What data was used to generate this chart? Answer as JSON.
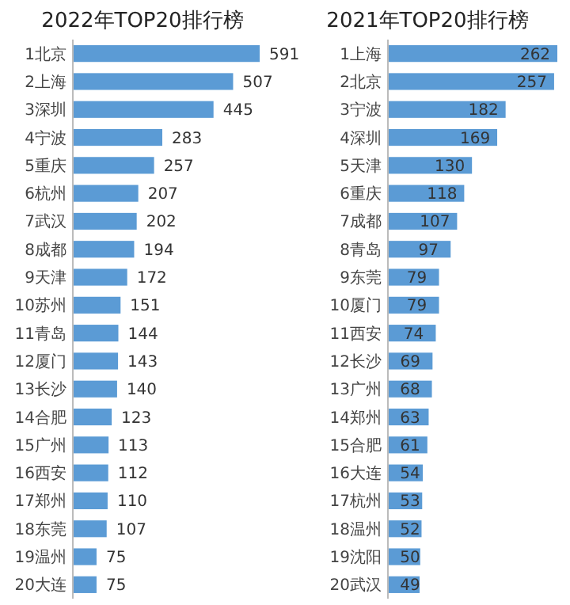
{
  "chart_data": [
    {
      "type": "bar",
      "orientation": "horizontal",
      "title": "2022年TOP20排行榜",
      "color": "#5b9bd5",
      "data_labels": true,
      "categories": [
        "1北京",
        "2上海",
        "3深圳",
        "4宁波",
        "5重庆",
        "6杭州",
        "7武汉",
        "8成都",
        "9天津",
        "10苏州",
        "11青岛",
        "12厦门",
        "13长沙",
        "14合肥",
        "15广州",
        "16西安",
        "17郑州",
        "18东莞",
        "19温州",
        "20大连"
      ],
      "values": [
        591,
        507,
        445,
        283,
        257,
        207,
        202,
        194,
        172,
        151,
        144,
        143,
        140,
        123,
        113,
        112,
        110,
        107,
        75,
        75
      ]
    },
    {
      "type": "bar",
      "orientation": "horizontal",
      "title": "2021年TOP20排行榜",
      "color": "#5b9bd5",
      "data_labels": true,
      "categories": [
        "1上海",
        "2北京",
        "3宁波",
        "4深圳",
        "5天津",
        "6重庆",
        "7成都",
        "8青岛",
        "9东莞",
        "10厦门",
        "11西安",
        "12长沙",
        "13广州",
        "14郑州",
        "15合肥",
        "16大连",
        "17杭州",
        "18温州",
        "19沈阳",
        "20武汉"
      ],
      "values": [
        262,
        257,
        182,
        169,
        130,
        118,
        107,
        97,
        79,
        79,
        74,
        69,
        68,
        63,
        61,
        54,
        53,
        52,
        50,
        49
      ]
    }
  ]
}
